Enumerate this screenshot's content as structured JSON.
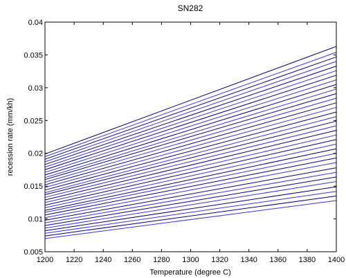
{
  "chart_data": {
    "type": "line",
    "title": "SN282",
    "xlabel": "Temperature (degree C)",
    "ylabel": "recession rate (mm/kh)",
    "xlim": [
      1200,
      1400
    ],
    "ylim": [
      0.005,
      0.04
    ],
    "xticks": [
      1200,
      1220,
      1240,
      1260,
      1280,
      1300,
      1320,
      1340,
      1360,
      1380,
      1400
    ],
    "yticks": [
      0.005,
      0.01,
      0.015,
      0.02,
      0.025,
      0.03,
      0.035,
      0.04
    ],
    "xtick_labels": [
      "1200",
      "1220",
      "1240",
      "1260",
      "1280",
      "1300",
      "1320",
      "1340",
      "1360",
      "1380",
      "1400"
    ],
    "ytick_labels": [
      "0.005",
      "0.01",
      "0.015",
      "0.02",
      "0.025",
      "0.03",
      "0.035",
      "0.04"
    ],
    "grid": false,
    "line_colors": [
      "#3333ee",
      "#000080"
    ],
    "series": [
      {
        "x": [
          1200,
          1400
        ],
        "y": [
          0.007,
          0.0128
        ]
      },
      {
        "x": [
          1200,
          1400
        ],
        "y": [
          0.0074,
          0.0135
        ]
      },
      {
        "x": [
          1200,
          1400
        ],
        "y": [
          0.0078,
          0.0142
        ]
      },
      {
        "x": [
          1200,
          1400
        ],
        "y": [
          0.0082,
          0.0149
        ]
      },
      {
        "x": [
          1200,
          1400
        ],
        "y": [
          0.0086,
          0.0157
        ]
      },
      {
        "x": [
          1200,
          1400
        ],
        "y": [
          0.009,
          0.0164
        ]
      },
      {
        "x": [
          1200,
          1400
        ],
        "y": [
          0.0094,
          0.0171
        ]
      },
      {
        "x": [
          1200,
          1400
        ],
        "y": [
          0.0098,
          0.0178
        ]
      },
      {
        "x": [
          1200,
          1400
        ],
        "y": [
          0.0102,
          0.0186
        ]
      },
      {
        "x": [
          1200,
          1400
        ],
        "y": [
          0.0106,
          0.0193
        ]
      },
      {
        "x": [
          1200,
          1400
        ],
        "y": [
          0.011,
          0.02
        ]
      },
      {
        "x": [
          1200,
          1400
        ],
        "y": [
          0.0113,
          0.0207
        ]
      },
      {
        "x": [
          1200,
          1400
        ],
        "y": [
          0.0117,
          0.0214
        ]
      },
      {
        "x": [
          1200,
          1400
        ],
        "y": [
          0.0121,
          0.0221
        ]
      },
      {
        "x": [
          1200,
          1400
        ],
        "y": [
          0.0125,
          0.0228
        ]
      },
      {
        "x": [
          1200,
          1400
        ],
        "y": [
          0.0129,
          0.0235
        ]
      },
      {
        "x": [
          1200,
          1400
        ],
        "y": [
          0.0133,
          0.0242
        ]
      },
      {
        "x": [
          1200,
          1400
        ],
        "y": [
          0.0137,
          0.0249
        ]
      },
      {
        "x": [
          1200,
          1400
        ],
        "y": [
          0.014,
          0.0256
        ]
      },
      {
        "x": [
          1200,
          1400
        ],
        "y": [
          0.0144,
          0.0263
        ]
      },
      {
        "x": [
          1200,
          1400
        ],
        "y": [
          0.0148,
          0.027
        ]
      },
      {
        "x": [
          1200,
          1400
        ],
        "y": [
          0.0152,
          0.0277
        ]
      },
      {
        "x": [
          1200,
          1400
        ],
        "y": [
          0.0156,
          0.0284
        ]
      },
      {
        "x": [
          1200,
          1400
        ],
        "y": [
          0.016,
          0.0291
        ]
      },
      {
        "x": [
          1200,
          1400
        ],
        "y": [
          0.0163,
          0.0298
        ]
      },
      {
        "x": [
          1200,
          1400
        ],
        "y": [
          0.0167,
          0.0305
        ]
      },
      {
        "x": [
          1200,
          1400
        ],
        "y": [
          0.0171,
          0.0312
        ]
      },
      {
        "x": [
          1200,
          1400
        ],
        "y": [
          0.0175,
          0.0319
        ]
      },
      {
        "x": [
          1200,
          1400
        ],
        "y": [
          0.0179,
          0.0326
        ]
      },
      {
        "x": [
          1200,
          1400
        ],
        "y": [
          0.0183,
          0.0333
        ]
      },
      {
        "x": [
          1200,
          1400
        ],
        "y": [
          0.0187,
          0.034
        ]
      },
      {
        "x": [
          1200,
          1400
        ],
        "y": [
          0.0191,
          0.0347
        ]
      },
      {
        "x": [
          1200,
          1400
        ],
        "y": [
          0.0195,
          0.0354
        ]
      },
      {
        "x": [
          1200,
          1400
        ],
        "y": [
          0.0199,
          0.0363
        ]
      }
    ]
  }
}
